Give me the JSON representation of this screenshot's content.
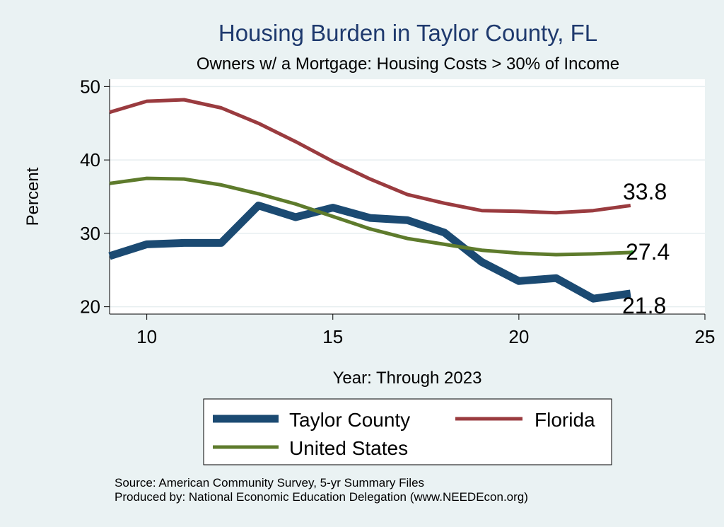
{
  "chart_data": {
    "type": "line",
    "title": "Housing Burden in Taylor County, FL",
    "subtitle": "Owners w/ a Mortgage: Housing Costs > 30% of Income",
    "xlabel": "Year: Through 2023",
    "ylabel": "Percent",
    "xlim": [
      9,
      25
    ],
    "ylim": [
      19,
      51
    ],
    "xticks": [
      10,
      15,
      20,
      25
    ],
    "yticks": [
      20,
      30,
      40,
      50
    ],
    "grid": true,
    "x": [
      9,
      10,
      11,
      12,
      13,
      14,
      15,
      16,
      17,
      18,
      19,
      20,
      21,
      22,
      23
    ],
    "series": [
      {
        "name": "Taylor County",
        "color": "#1b4a72",
        "values": [
          26.9,
          28.5,
          28.7,
          28.7,
          33.8,
          32.2,
          33.5,
          32.1,
          31.8,
          30.1,
          26.1,
          23.5,
          23.9,
          21.1,
          21.8
        ]
      },
      {
        "name": "Florida",
        "color": "#9a3b3f",
        "values": [
          46.5,
          48.0,
          48.2,
          47.1,
          45.0,
          42.5,
          39.8,
          37.4,
          35.3,
          34.1,
          33.1,
          33.0,
          32.8,
          33.1,
          33.8
        ]
      },
      {
        "name": "United States",
        "color": "#5e7b2c",
        "values": [
          36.8,
          37.5,
          37.4,
          36.6,
          35.4,
          34.0,
          32.3,
          30.6,
          29.3,
          28.5,
          27.7,
          27.3,
          27.1,
          27.2,
          27.4
        ]
      }
    ],
    "end_labels": [
      "21.8",
      "33.8",
      "27.4"
    ],
    "legend": {
      "position": "bottom-center",
      "entries": [
        "Taylor County",
        "Florida",
        "United States"
      ]
    },
    "notes": [
      "Source: American Community Survey, 5-yr Summary Files",
      "Produced by: National Economic Education Delegation (www.NEEDEcon.org)"
    ]
  }
}
